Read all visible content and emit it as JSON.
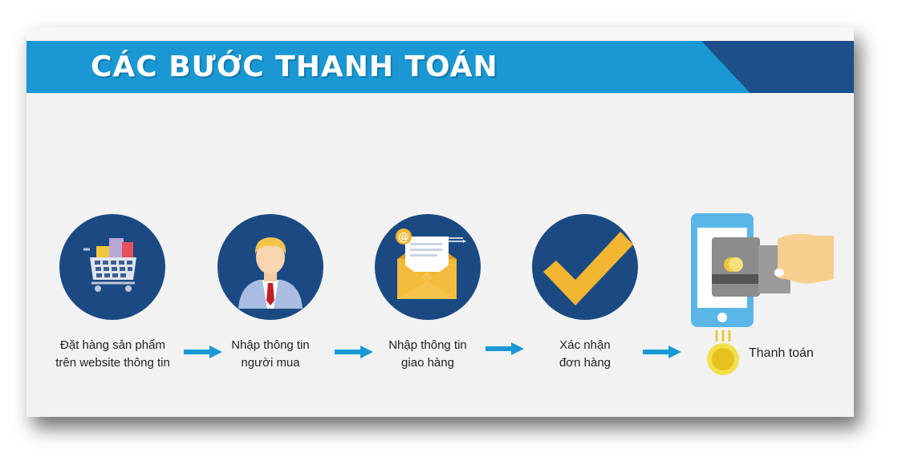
{
  "header": {
    "title": "CÁC BƯỚC THANH TOÁN"
  },
  "steps": [
    {
      "line1": "Đặt hàng sản phẩm",
      "line2": "trên website thông tin",
      "icon": "shopping-cart-icon"
    },
    {
      "line1": "Nhập thông tin",
      "line2": "người mua",
      "icon": "businessman-icon"
    },
    {
      "line1": "Nhập thông tin",
      "line2": "giao hàng",
      "icon": "email-envelope-icon"
    },
    {
      "line1": "Xác nhận",
      "line2": "đơn hàng",
      "icon": "checkmark-icon"
    }
  ],
  "final_step": {
    "label": "Thanh toán",
    "icon": "phone-card-payment-icon"
  },
  "colors": {
    "banner": "#1a98d3",
    "banner_dark": "#1d4f8a",
    "circle": "#1b4a83",
    "arrow": "#1a98d3",
    "accent_yellow": "#f5b730"
  }
}
